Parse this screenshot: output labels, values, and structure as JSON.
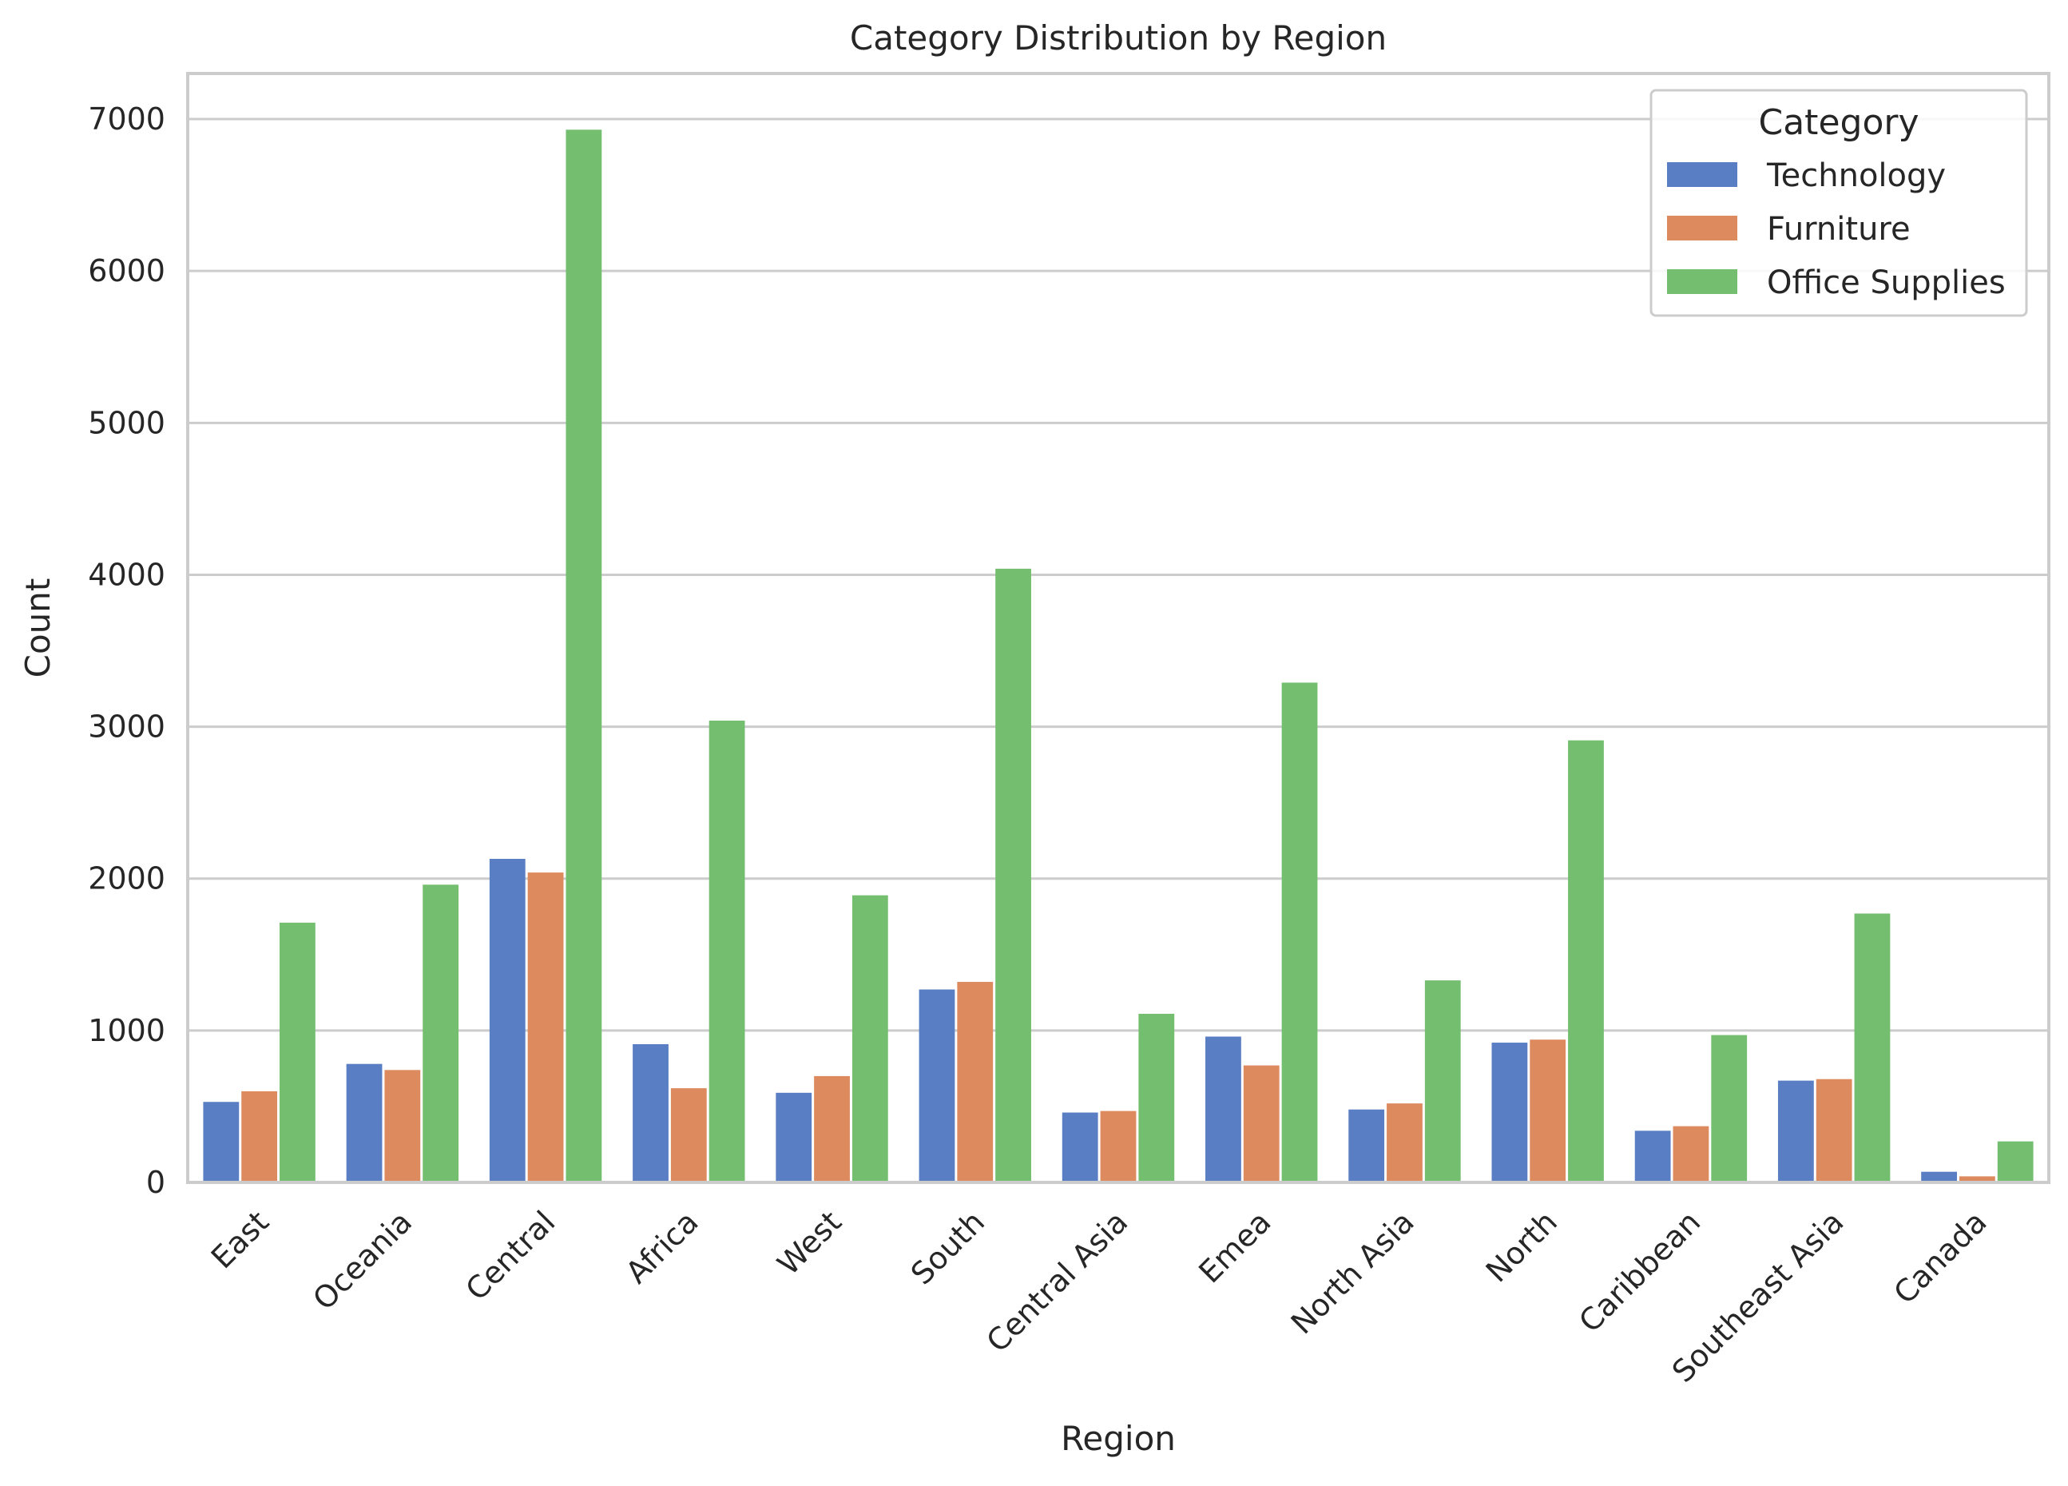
{
  "chart_data": {
    "type": "bar",
    "title": "Category Distribution by Region",
    "xlabel": "Region",
    "ylabel": "Count",
    "ylim": [
      0,
      7300
    ],
    "yticks": [
      0,
      1000,
      2000,
      3000,
      4000,
      5000,
      6000,
      7000
    ],
    "grid": "horizontal",
    "legend_title": "Category",
    "legend_position": "top-right",
    "categories": [
      "East",
      "Oceania",
      "Central",
      "Africa",
      "West",
      "South",
      "Central Asia",
      "Emea",
      "North Asia",
      "North",
      "Caribbean",
      "Southeast Asia",
      "Canada"
    ],
    "series": [
      {
        "name": "Technology",
        "color": "#5A7EC3",
        "values": [
          530,
          780,
          2130,
          910,
          590,
          1270,
          460,
          960,
          480,
          920,
          340,
          670,
          70
        ]
      },
      {
        "name": "Furniture",
        "color": "#DC8A5E",
        "values": [
          600,
          740,
          2040,
          620,
          700,
          1320,
          470,
          770,
          520,
          940,
          370,
          680,
          40
        ]
      },
      {
        "name": "Office Supplies",
        "color": "#74BF6F",
        "values": [
          1710,
          1960,
          6930,
          3040,
          1890,
          4040,
          1110,
          3290,
          1330,
          2910,
          970,
          1770,
          270
        ]
      }
    ]
  }
}
